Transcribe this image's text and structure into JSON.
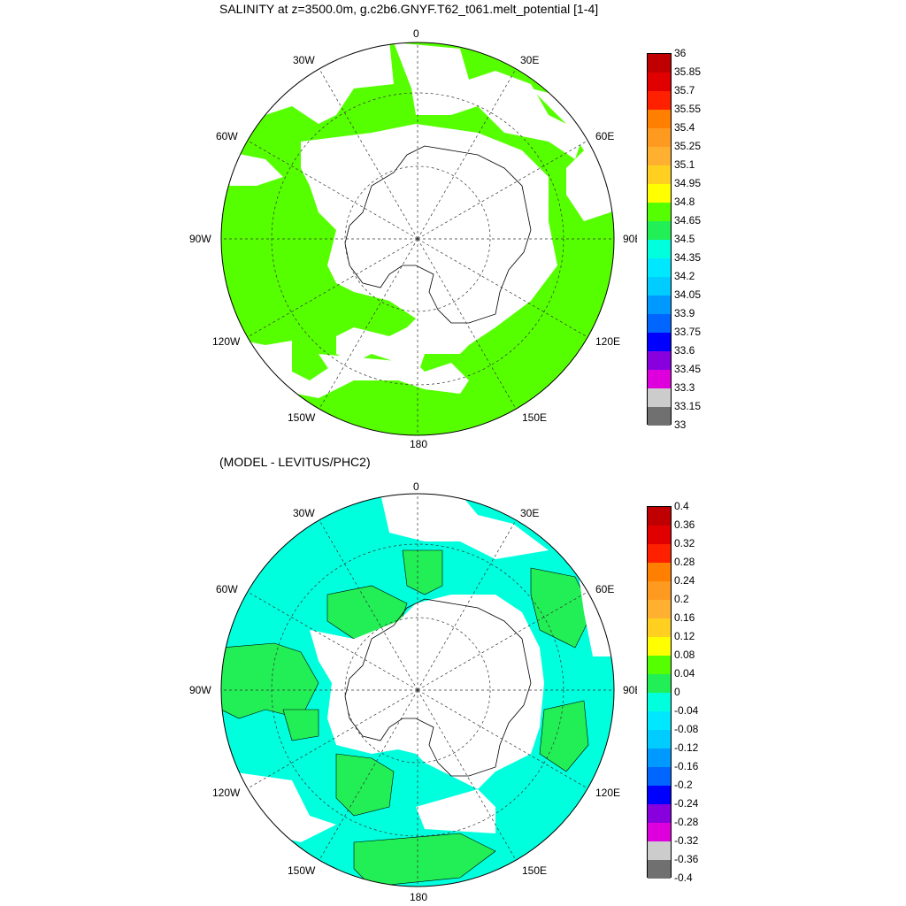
{
  "panel1": {
    "title": "SALINITY at z=3500.0m, g.c2b6.GNYF.T62_t061.melt_potential [1-4]",
    "colorbar_labels": [
      "36",
      "35.85",
      "35.7",
      "35.55",
      "35.4",
      "35.25",
      "35.1",
      "34.95",
      "34.8",
      "34.65",
      "34.5",
      "34.35",
      "34.2",
      "34.05",
      "33.9",
      "33.75",
      "33.6",
      "33.45",
      "33.3",
      "33.15",
      "33"
    ],
    "colorbar_colors": [
      "#c00000",
      "#e00000",
      "#ff2000",
      "#ff8000",
      "#ff9a20",
      "#ffb030",
      "#ffd020",
      "#ffff00",
      "#55ff00",
      "#22ee55",
      "#00ffdd",
      "#00e8ff",
      "#00ccff",
      "#0099ff",
      "#0066ff",
      "#0000ff",
      "#8800dd",
      "#dd00dd",
      "#cccccc",
      "#707070"
    ],
    "dominant_fill": "#55ff00"
  },
  "panel2": {
    "title": "(MODEL - LEVITUS/PHC2)",
    "colorbar_labels": [
      "0.4",
      "0.36",
      "0.32",
      "0.28",
      "0.24",
      "0.2",
      "0.16",
      "0.12",
      "0.08",
      "0.04",
      "0",
      "-0.04",
      "-0.08",
      "-0.12",
      "-0.16",
      "-0.2",
      "-0.24",
      "-0.28",
      "-0.32",
      "-0.36",
      "-0.4"
    ],
    "colorbar_colors": [
      "#c00000",
      "#e00000",
      "#ff2000",
      "#ff8000",
      "#ff9a20",
      "#ffb030",
      "#ffd020",
      "#ffff00",
      "#55ff00",
      "#22ee55",
      "#00ffdd",
      "#00e8ff",
      "#00ccff",
      "#0099ff",
      "#0066ff",
      "#0000ff",
      "#8800dd",
      "#dd00dd",
      "#cccccc",
      "#707070"
    ],
    "fill_positive": "#22ee55",
    "fill_negative": "#00ffdd"
  },
  "longitude_labels": {
    "lon0": "0",
    "lon30e": "30E",
    "lon60e": "60E",
    "lon90e": "90E",
    "lon120e": "120E",
    "lon150e": "150E",
    "lon180": "180",
    "lon150w": "150W",
    "lon120w": "120W",
    "lon90w": "90W",
    "lon60w": "60W",
    "lon30w": "30W"
  }
}
